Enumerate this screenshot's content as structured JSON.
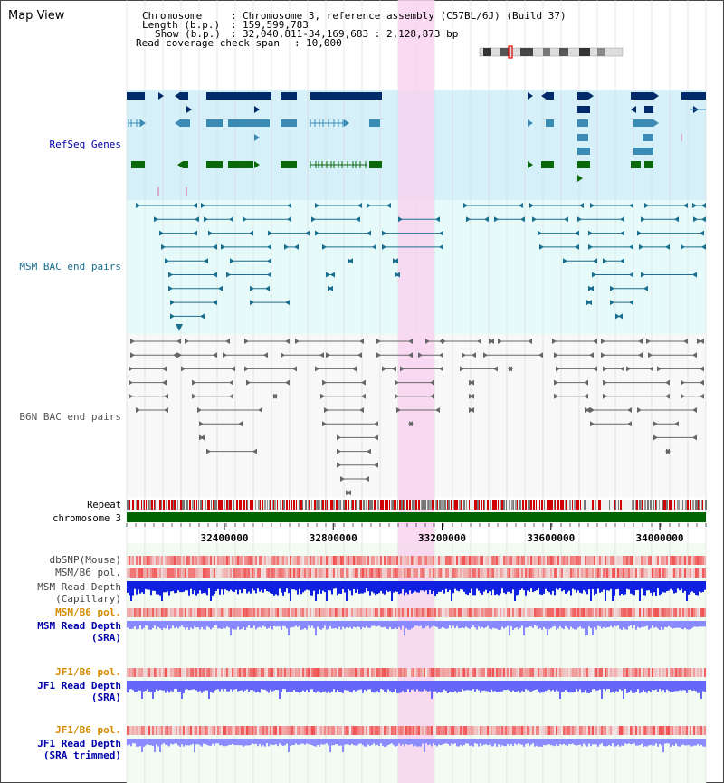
{
  "title": "Map View",
  "header": {
    "chromosome_label": "Chromosome",
    "chromosome_value": "Chromosome 3, reference assembly (C57BL/6J) (Build 37)",
    "length_label": "Length (b.p.)",
    "length_value": "159,599,783",
    "show_label": "Show (b.p.)",
    "show_value": "32,040,811-34,169,683 : 2,128,873 bp",
    "coverage_label": "Read coverage check span",
    "coverage_value": "10,000"
  },
  "tracks": {
    "refseq": "RefSeq Genes",
    "msm_bac": "MSM BAC end pairs",
    "b6n_bac": "B6N BAC end pairs",
    "repeat": "Repeat",
    "chromosome": "chromosome 3",
    "dbsnp": "dbSNP(Mouse)",
    "msm_b6_pol": "MSM/B6 pol.",
    "msm_depth_cap_1": "MSM Read Depth",
    "msm_depth_cap_2": "(Capillary)",
    "msm_b6_pol_2": "MSM/B6 pol.",
    "msm_depth_sra_1": "MSM Read Depth",
    "msm_depth_sra_2": "(SRA)",
    "jf1_b6_pol": "JF1/B6 pol.",
    "jf1_depth_sra_1": "JF1 Read Depth",
    "jf1_depth_sra_2": "(SRA)",
    "jf1_b6_pol_2": "JF1/B6 pol.",
    "jf1_depth_trim_1": "JF1 Read Depth",
    "jf1_depth_trim_2": "(SRA trimmed)"
  },
  "axis": {
    "ticks": [
      "32400000",
      "32800000",
      "33200000",
      "33600000",
      "34000000"
    ],
    "tick_values": [
      32400000,
      32800000,
      33200000,
      33600000,
      34000000
    ],
    "range": [
      32040811,
      34169683
    ]
  },
  "colors": {
    "refseq_bg": "#d6f0fa",
    "msm_bg": "#e6fafa",
    "highlight": "#f8d4f0",
    "dark_blue": "#002a6a",
    "mid_blue": "#3a8cb4",
    "green": "#0a6a0a",
    "teal": "#1a6e8e",
    "gray": "#666666",
    "chrom": "#006400",
    "label_blue": "#0000aa",
    "label_orange": "#d48c00",
    "label_gray": "#444444"
  }
}
